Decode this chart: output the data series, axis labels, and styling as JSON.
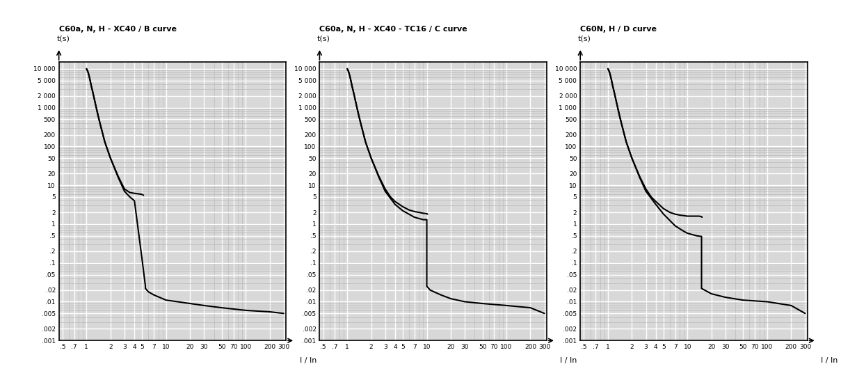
{
  "titles": [
    "C60a, N, H - XC40 / B curve",
    "C60a, N, H - XC40 - TC16 / C curve",
    "C60N, H / D curve"
  ],
  "ylabel": "t(s)",
  "xlabel": "I / In",
  "xlim": [
    0.45,
    320
  ],
  "ylim": [
    0.001,
    15000
  ],
  "xticks": [
    0.5,
    0.7,
    1,
    2,
    3,
    4,
    5,
    7,
    10,
    20,
    30,
    50,
    70,
    100,
    200,
    300
  ],
  "xticklabels": [
    ".5",
    ".7",
    "1",
    "2",
    "3",
    "4",
    "5",
    "7",
    "10",
    "20",
    "30",
    "50",
    "70",
    "100",
    "200",
    "300"
  ],
  "yticks": [
    0.001,
    0.002,
    0.005,
    0.01,
    0.02,
    0.05,
    0.1,
    0.2,
    0.5,
    1,
    2,
    5,
    10,
    20,
    50,
    100,
    200,
    500,
    1000,
    2000,
    5000,
    10000
  ],
  "yticklabels": [
    ".001",
    ".002",
    ".005",
    ".01",
    ".02",
    ".05",
    ".1",
    ".2",
    ".5",
    "1",
    "2",
    "5",
    "10",
    "20",
    "50",
    "100",
    "200",
    "500",
    "1 000",
    "2 000",
    "5 000",
    "10 000"
  ],
  "bg_color": "#d8d8d8",
  "grid_major_color": "#ffffff",
  "grid_minor_color": "#bbbbbb",
  "line_color": "#000000",
  "fig_bg": "#ffffff",
  "curves": {
    "B": {
      "upper": {
        "x": [
          1.0,
          1.02,
          1.05,
          1.08,
          1.1,
          1.15,
          1.2,
          1.3,
          1.4,
          1.5,
          1.7,
          2.0,
          2.5,
          3.0,
          3.5,
          4.0,
          4.5,
          5.0,
          5.2
        ],
        "y": [
          10000,
          9500,
          8000,
          6500,
          5500,
          3500,
          2500,
          1200,
          600,
          350,
          130,
          50,
          17,
          8,
          6.5,
          6.2,
          6.0,
          5.8,
          5.5
        ]
      },
      "lower": {
        "x": [
          1.0,
          1.05,
          1.1,
          1.2,
          1.3,
          1.5,
          1.7,
          2.0,
          2.5,
          3.0,
          3.5,
          4.0,
          5.0,
          5.5,
          5.5,
          6.0,
          7.0,
          10,
          20,
          30,
          50,
          100,
          200,
          300
        ],
        "y": [
          10000,
          8000,
          5500,
          2500,
          1200,
          350,
          130,
          50,
          16,
          7,
          5.0,
          4.0,
          0.12,
          0.025,
          0.022,
          0.018,
          0.015,
          0.011,
          0.009,
          0.008,
          0.007,
          0.006,
          0.0055,
          0.005
        ]
      }
    },
    "C": {
      "upper": {
        "x": [
          1.0,
          1.02,
          1.05,
          1.08,
          1.1,
          1.15,
          1.2,
          1.3,
          1.4,
          1.5,
          1.7,
          2.0,
          2.5,
          3.0,
          3.5,
          4.0,
          5.0,
          6.0,
          7.0,
          8.0,
          9.0,
          10.0,
          10.2
        ],
        "y": [
          10000,
          9500,
          8000,
          6500,
          5500,
          3500,
          2500,
          1200,
          600,
          350,
          130,
          50,
          17,
          8,
          5,
          3.8,
          2.8,
          2.3,
          2.1,
          2.0,
          1.9,
          1.85,
          1.8
        ]
      },
      "lower": {
        "x": [
          1.0,
          1.05,
          1.1,
          1.2,
          1.3,
          1.5,
          1.7,
          2.0,
          2.5,
          3.0,
          4.0,
          5.0,
          7.0,
          9.0,
          10.0,
          10.0,
          11.0,
          15,
          20,
          30,
          50,
          100,
          200,
          300
        ],
        "y": [
          10000,
          8000,
          5500,
          2500,
          1200,
          350,
          130,
          50,
          16,
          7,
          3.2,
          2.2,
          1.5,
          1.3,
          1.3,
          0.025,
          0.02,
          0.015,
          0.012,
          0.01,
          0.009,
          0.008,
          0.007,
          0.005
        ]
      }
    },
    "D": {
      "upper": {
        "x": [
          1.0,
          1.02,
          1.05,
          1.08,
          1.1,
          1.15,
          1.2,
          1.3,
          1.4,
          1.5,
          1.7,
          2.0,
          2.5,
          3.0,
          3.5,
          4.0,
          5.0,
          6.0,
          7.0,
          8.0,
          9.0,
          10.0,
          11.0,
          12.0,
          13.0,
          14.0,
          15.0,
          15.2
        ],
        "y": [
          10000,
          9500,
          8000,
          6500,
          5500,
          3500,
          2500,
          1200,
          600,
          350,
          130,
          50,
          17,
          8,
          5,
          3.8,
          2.5,
          2.0,
          1.8,
          1.7,
          1.65,
          1.6,
          1.6,
          1.6,
          1.6,
          1.6,
          1.55,
          1.5
        ]
      },
      "lower": {
        "x": [
          1.0,
          1.05,
          1.1,
          1.2,
          1.3,
          1.5,
          1.7,
          2.0,
          2.5,
          3.0,
          4.0,
          5.0,
          7.0,
          9.0,
          10.0,
          13.0,
          15.0,
          15.0,
          20,
          30,
          50,
          100,
          200,
          300
        ],
        "y": [
          10000,
          8000,
          5500,
          2500,
          1200,
          350,
          130,
          50,
          16,
          7,
          3.2,
          1.8,
          0.9,
          0.65,
          0.58,
          0.5,
          0.48,
          0.022,
          0.016,
          0.013,
          0.011,
          0.01,
          0.008,
          0.005
        ]
      }
    }
  }
}
